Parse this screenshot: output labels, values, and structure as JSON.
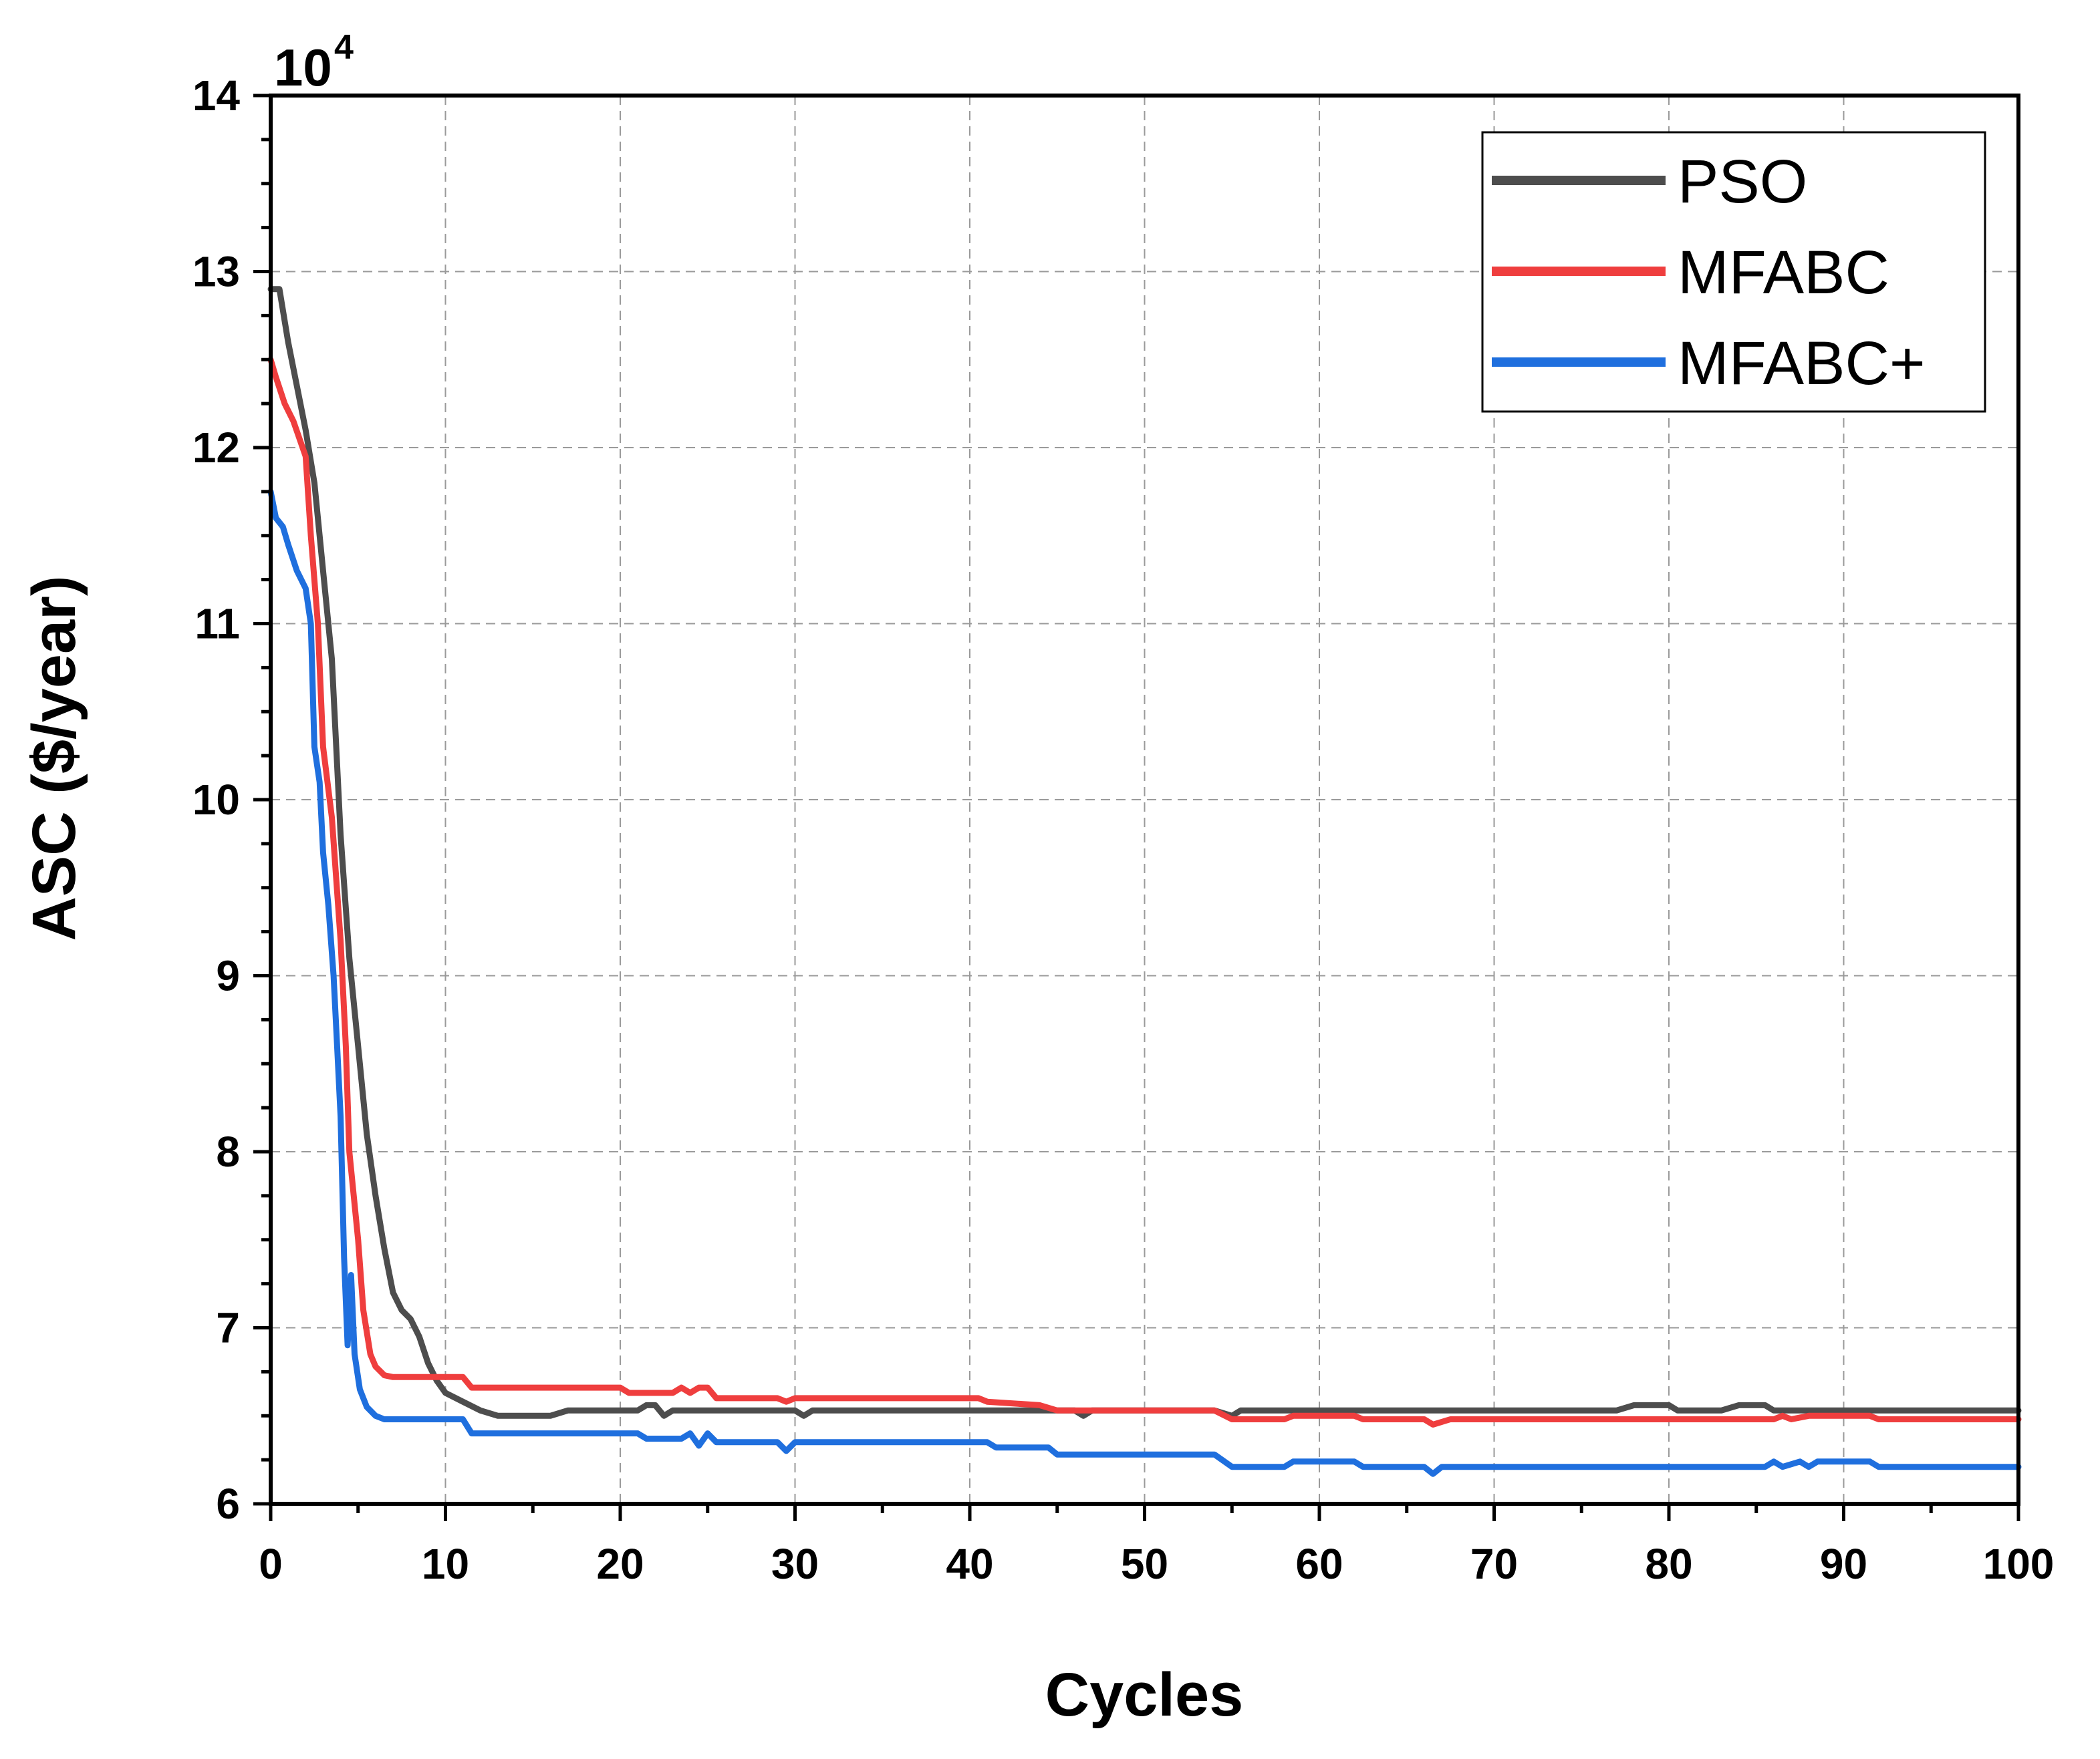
{
  "chart_data": {
    "type": "line",
    "title": "",
    "xlabel": "Cycles",
    "ylabel": "ASC ($/year)",
    "y_multiplier_base": "10",
    "y_multiplier_exp": "4",
    "xlim": [
      0,
      100
    ],
    "ylim": [
      6,
      14
    ],
    "x_ticks": [
      0,
      10,
      20,
      30,
      40,
      50,
      60,
      70,
      80,
      90,
      100
    ],
    "y_ticks": [
      6,
      7,
      8,
      9,
      10,
      11,
      12,
      13,
      14
    ],
    "x_tick_labels": [
      "0",
      "10",
      "20",
      "30",
      "40",
      "50",
      "60",
      "70",
      "80",
      "90",
      "100"
    ],
    "y_tick_labels": [
      "6",
      "7",
      "8",
      "9",
      "10",
      "11",
      "12",
      "13",
      "14"
    ],
    "grid": true,
    "legend_position": "top-right",
    "series": [
      {
        "name": "PSO",
        "color": "#4d4d4d",
        "points": [
          [
            0,
            12.9
          ],
          [
            0.5,
            12.9
          ],
          [
            1,
            12.6
          ],
          [
            1.5,
            12.35
          ],
          [
            2,
            12.1
          ],
          [
            2.5,
            11.8
          ],
          [
            3,
            11.3
          ],
          [
            3.5,
            10.8
          ],
          [
            4,
            9.8
          ],
          [
            4.5,
            9.1
          ],
          [
            5,
            8.6
          ],
          [
            5.5,
            8.1
          ],
          [
            6,
            7.75
          ],
          [
            6.5,
            7.45
          ],
          [
            7,
            7.2
          ],
          [
            7.5,
            7.1
          ],
          [
            8,
            7.05
          ],
          [
            8.5,
            6.95
          ],
          [
            9,
            6.8
          ],
          [
            9.5,
            6.7
          ],
          [
            10,
            6.63
          ],
          [
            11,
            6.58
          ],
          [
            12,
            6.53
          ],
          [
            13,
            6.5
          ],
          [
            16,
            6.5
          ],
          [
            17,
            6.53
          ],
          [
            21,
            6.53
          ],
          [
            21.5,
            6.56
          ],
          [
            22,
            6.56
          ],
          [
            22.5,
            6.5
          ],
          [
            23,
            6.53
          ],
          [
            30,
            6.53
          ],
          [
            30.5,
            6.5
          ],
          [
            31,
            6.53
          ],
          [
            46,
            6.53
          ],
          [
            46.5,
            6.5
          ],
          [
            47,
            6.53
          ],
          [
            54,
            6.53
          ],
          [
            55,
            6.5
          ],
          [
            55.5,
            6.53
          ],
          [
            77,
            6.53
          ],
          [
            78,
            6.56
          ],
          [
            80,
            6.56
          ],
          [
            80.5,
            6.53
          ],
          [
            83,
            6.53
          ],
          [
            84,
            6.56
          ],
          [
            85.5,
            6.56
          ],
          [
            86,
            6.53
          ],
          [
            100,
            6.53
          ]
        ]
      },
      {
        "name": "MFABC",
        "color": "#ef3e3e",
        "points": [
          [
            0,
            12.5
          ],
          [
            0.3,
            12.4
          ],
          [
            0.8,
            12.25
          ],
          [
            1.3,
            12.15
          ],
          [
            2,
            11.95
          ],
          [
            2.3,
            11.5
          ],
          [
            2.7,
            11.0
          ],
          [
            3,
            10.3
          ],
          [
            3.5,
            9.9
          ],
          [
            4,
            9.2
          ],
          [
            4.3,
            8.6
          ],
          [
            4.5,
            8.0
          ],
          [
            5,
            7.5
          ],
          [
            5.3,
            7.1
          ],
          [
            5.7,
            6.85
          ],
          [
            6,
            6.78
          ],
          [
            6.5,
            6.73
          ],
          [
            7,
            6.72
          ],
          [
            11,
            6.72
          ],
          [
            11.5,
            6.66
          ],
          [
            20,
            6.66
          ],
          [
            20.5,
            6.63
          ],
          [
            23,
            6.63
          ],
          [
            23.5,
            6.66
          ],
          [
            24,
            6.63
          ],
          [
            24.5,
            6.66
          ],
          [
            25,
            6.66
          ],
          [
            25.5,
            6.6
          ],
          [
            29,
            6.6
          ],
          [
            29.5,
            6.58
          ],
          [
            30,
            6.6
          ],
          [
            40.5,
            6.6
          ],
          [
            41,
            6.58
          ],
          [
            44,
            6.56
          ],
          [
            45,
            6.53
          ],
          [
            54,
            6.53
          ],
          [
            55,
            6.48
          ],
          [
            58,
            6.48
          ],
          [
            58.5,
            6.5
          ],
          [
            62,
            6.5
          ],
          [
            62.5,
            6.48
          ],
          [
            66,
            6.48
          ],
          [
            66.5,
            6.45
          ],
          [
            67.5,
            6.48
          ],
          [
            86,
            6.48
          ],
          [
            86.5,
            6.5
          ],
          [
            87,
            6.48
          ],
          [
            88,
            6.5
          ],
          [
            91.5,
            6.5
          ],
          [
            92,
            6.48
          ],
          [
            100,
            6.48
          ]
        ]
      },
      {
        "name": "MFABC+",
        "color": "#1f6fde",
        "points": [
          [
            0,
            11.75
          ],
          [
            0.3,
            11.6
          ],
          [
            0.7,
            11.55
          ],
          [
            1,
            11.45
          ],
          [
            1.5,
            11.3
          ],
          [
            2,
            11.2
          ],
          [
            2.3,
            11.0
          ],
          [
            2.5,
            10.3
          ],
          [
            2.8,
            10.1
          ],
          [
            3,
            9.7
          ],
          [
            3.3,
            9.4
          ],
          [
            3.6,
            9.0
          ],
          [
            3.8,
            8.6
          ],
          [
            4,
            8.2
          ],
          [
            4.2,
            7.4
          ],
          [
            4.4,
            6.9
          ],
          [
            4.6,
            7.3
          ],
          [
            4.8,
            6.85
          ],
          [
            5.1,
            6.65
          ],
          [
            5.5,
            6.55
          ],
          [
            6,
            6.5
          ],
          [
            6.5,
            6.48
          ],
          [
            11,
            6.48
          ],
          [
            11.5,
            6.4
          ],
          [
            21,
            6.4
          ],
          [
            21.5,
            6.37
          ],
          [
            23.5,
            6.37
          ],
          [
            24,
            6.4
          ],
          [
            24.5,
            6.33
          ],
          [
            25,
            6.4
          ],
          [
            25.5,
            6.35
          ],
          [
            29,
            6.35
          ],
          [
            29.5,
            6.3
          ],
          [
            30,
            6.35
          ],
          [
            41,
            6.35
          ],
          [
            41.5,
            6.32
          ],
          [
            44.5,
            6.32
          ],
          [
            45,
            6.28
          ],
          [
            54,
            6.28
          ],
          [
            55,
            6.21
          ],
          [
            58,
            6.21
          ],
          [
            58.5,
            6.24
          ],
          [
            62,
            6.24
          ],
          [
            62.5,
            6.21
          ],
          [
            66,
            6.21
          ],
          [
            66.5,
            6.17
          ],
          [
            67,
            6.21
          ],
          [
            85.5,
            6.21
          ],
          [
            86,
            6.24
          ],
          [
            86.5,
            6.21
          ],
          [
            87.5,
            6.24
          ],
          [
            88,
            6.21
          ],
          [
            88.5,
            6.24
          ],
          [
            91.5,
            6.24
          ],
          [
            92,
            6.21
          ],
          [
            100,
            6.21
          ]
        ]
      }
    ]
  }
}
